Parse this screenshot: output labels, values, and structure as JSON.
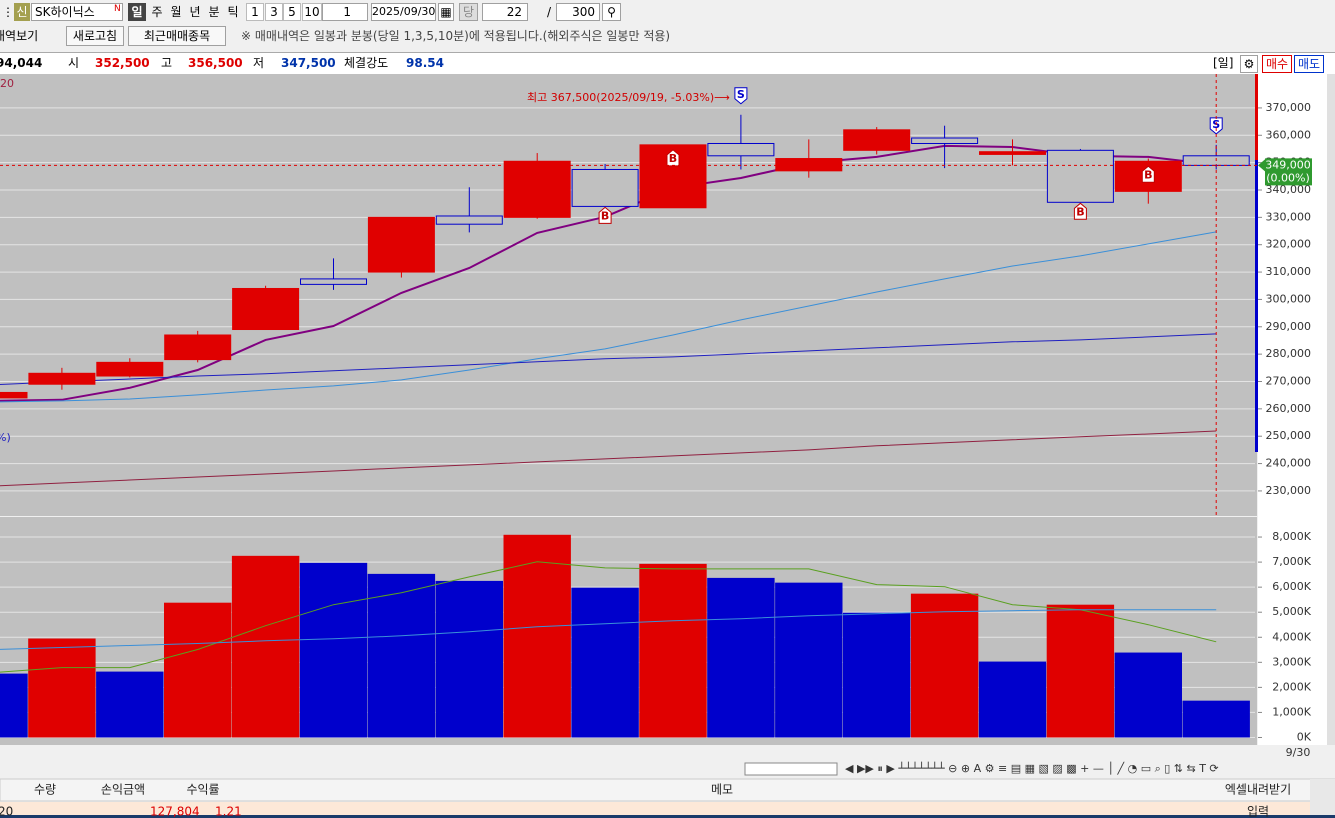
{
  "toolbar": {
    "badge": "신",
    "stock": "SK하이닉스",
    "stock_flag": "N",
    "periods": [
      "일",
      "주",
      "월",
      "년",
      "분",
      "틱"
    ],
    "minutes": [
      "1",
      "3",
      "5",
      "10"
    ],
    "interval": "1",
    "date": "2025/09/30",
    "today": "당",
    "count": "22",
    "slash": "/",
    "total": "300"
  },
  "toolbar2": {
    "history": "내역보기",
    "refresh": "새로고침",
    "recent": "최근매매종목",
    "note": "※ 매매내역은 일봉과 분봉(당일 1,3,5,10분)에 적용됩니다.(해외주식은 일봉만 적용)"
  },
  "quote": {
    "prev": "94,044",
    "open_label": "시",
    "open": "352,500",
    "high_label": "고",
    "high": "356,500",
    "low_label": "저",
    "low": "347,500",
    "strength_label": "체결강도",
    "strength": "98.54",
    "period": "[일]",
    "buy": "매수",
    "sell": "매도"
  },
  "chart_data": [
    {
      "type": "candlestick",
      "open": [
        264000,
        269000,
        272000,
        278000,
        289000,
        307500,
        310000,
        330500,
        330000,
        347500,
        333500,
        357000,
        347000,
        354500,
        359000,
        353000,
        354500,
        339500,
        352500
      ],
      "high": [
        266500,
        275000,
        278500,
        288500,
        305000,
        315000,
        330000,
        341000,
        353500,
        349500,
        356500,
        367500,
        358500,
        363000,
        363500,
        358500,
        355000,
        351500,
        356500
      ],
      "low": [
        263500,
        267000,
        271500,
        277000,
        289000,
        303500,
        308000,
        324500,
        329500,
        334000,
        333500,
        347500,
        344500,
        353000,
        348000,
        349000,
        335500,
        335000,
        347500
      ],
      "close": [
        266000,
        273000,
        277000,
        287000,
        304000,
        305500,
        330000,
        327500,
        350500,
        334000,
        356500,
        352500,
        351500,
        362000,
        357000,
        354000,
        335500,
        350500,
        349000
      ],
      "up_color": "#e00000",
      "down_color": "#0000cc",
      "trade_marks": [
        null,
        null,
        null,
        null,
        null,
        null,
        null,
        null,
        null,
        "B",
        "B",
        "S",
        null,
        null,
        null,
        null,
        "B",
        "B",
        "S"
      ],
      "moving_averages": [
        {
          "color": "#800080",
          "values": [
            262900,
            263300,
            267700,
            274200,
            285200,
            290300,
            302400,
            311500,
            324300,
            330200,
            340800,
            344400,
            349900,
            352100,
            356100,
            355700,
            352500,
            352100,
            349200
          ]
        },
        {
          "color": "#3a8fd8",
          "values": [
            262500,
            262900,
            263600,
            265100,
            266900,
            268400,
            270600,
            274200,
            278300,
            281900,
            287000,
            292500,
            297600,
            302700,
            307500,
            312200,
            315900,
            320300,
            324700
          ]
        },
        {
          "color": "#2020c0",
          "values": [
            268800,
            269900,
            270900,
            272000,
            272800,
            273900,
            275000,
            276100,
            277200,
            278300,
            279000,
            280100,
            281200,
            282300,
            283400,
            284500,
            285200,
            286300,
            287400
          ]
        },
        {
          "color": "#902040",
          "values": [
            231800,
            232900,
            234000,
            235100,
            236200,
            237300,
            238400,
            239500,
            240600,
            241700,
            242800,
            243900,
            245000,
            246500,
            247600,
            248700,
            249800,
            250800,
            251900
          ]
        }
      ],
      "annotation": "최고 367,500(2025/09/19, -5.03%)⟶",
      "last_price": {
        "value": 349000,
        "label": "349,000"
      },
      "last_change": "(0.00%)",
      "left_labels": [
        "20",
        "%)"
      ],
      "ylim": [
        221200,
        382400
      ],
      "yticks": [
        {
          "value": 230000,
          "label": "230,000"
        },
        {
          "value": 240000,
          "label": "240,000"
        },
        {
          "value": 250000,
          "label": "250,000"
        },
        {
          "value": 260000,
          "label": "260,000"
        },
        {
          "value": 270000,
          "label": "270,000"
        },
        {
          "value": 280000,
          "label": "280,000"
        },
        {
          "value": 290000,
          "label": "290,000"
        },
        {
          "value": 300000,
          "label": "300,000"
        },
        {
          "value": 310000,
          "label": "310,000"
        },
        {
          "value": 320000,
          "label": "320,000"
        },
        {
          "value": 330000,
          "label": "330,000"
        },
        {
          "value": 340000,
          "label": "340,000"
        },
        {
          "value": 350000,
          "label": "350,000"
        },
        {
          "value": 360000,
          "label": "360,000"
        },
        {
          "value": 370000,
          "label": "370,000"
        }
      ],
      "grid": true
    },
    {
      "type": "bar",
      "values": [
        2550,
        3950,
        2630,
        5380,
        7250,
        6970,
        6530,
        6250,
        8090,
        5980,
        6930,
        6370,
        6180,
        4980,
        5740,
        3030,
        5300,
        3390,
        1470
      ],
      "up_color": "#e00000",
      "down_color": "#0000cc",
      "moving_averages": [
        {
          "color": "#5aa020",
          "values": [
            2590,
            2790,
            2790,
            3510,
            4460,
            5300,
            5780,
            6410,
            7010,
            6770,
            6730,
            6730,
            6730,
            6100,
            6020,
            5300,
            5100,
            4500,
            3820
          ]
        },
        {
          "color": "#3a8fd8",
          "values": [
            3510,
            3590,
            3670,
            3750,
            3860,
            3940,
            4060,
            4220,
            4420,
            4540,
            4660,
            4740,
            4860,
            4940,
            5020,
            5060,
            5100,
            5100,
            5100
          ]
        }
      ],
      "date_label": "9/30",
      "ylim": [
        -300,
        8800
      ],
      "yticks": [
        {
          "value": 0,
          "label": "0K"
        },
        {
          "value": 1000,
          "label": "1,000K"
        },
        {
          "value": 2000,
          "label": "2,000K"
        },
        {
          "value": 3000,
          "label": "3,000K"
        },
        {
          "value": 4000,
          "label": "4,000K"
        },
        {
          "value": 5000,
          "label": "5,000K"
        },
        {
          "value": 6000,
          "label": "6,000K"
        },
        {
          "value": 7000,
          "label": "7,000K"
        },
        {
          "value": 8000,
          "label": "8,000K"
        }
      ],
      "grid": true
    }
  ],
  "table": {
    "headers": [
      "수량",
      "손익금액",
      "수익률",
      "메모",
      "엑셀내려받기"
    ],
    "row": [
      "20",
      "127,804",
      "1.21",
      "입력"
    ]
  }
}
